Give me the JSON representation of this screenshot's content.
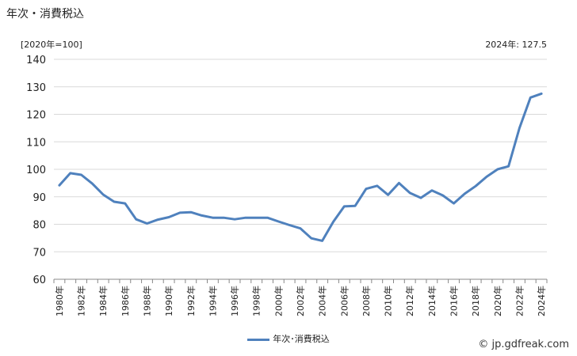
{
  "header": {
    "title": "年次・消費税込",
    "unit_label": "[2020年=100]",
    "latest_value_label": "2024年: 127.5"
  },
  "legend": {
    "label": "年次･消費税込"
  },
  "footer": {
    "source": "© jp.gdfreak.com"
  },
  "colors": {
    "line": "#4f81bd",
    "grid": "#d9d9d9",
    "axis": "#888888"
  },
  "chart_data": {
    "type": "line",
    "ylim": [
      60,
      140
    ],
    "yticks": [
      60,
      70,
      80,
      90,
      100,
      110,
      120,
      130,
      140
    ],
    "x": [
      1980,
      1981,
      1982,
      1983,
      1984,
      1985,
      1986,
      1987,
      1988,
      1989,
      1990,
      1991,
      1992,
      1993,
      1994,
      1995,
      1996,
      1997,
      1998,
      1999,
      2000,
      2001,
      2002,
      2003,
      2004,
      2005,
      2006,
      2007,
      2008,
      2009,
      2010,
      2011,
      2012,
      2013,
      2014,
      2015,
      2016,
      2017,
      2018,
      2019,
      2020,
      2021,
      2022,
      2023,
      2024
    ],
    "xtick_labels": [
      "1980年",
      "1982年",
      "1984年",
      "1986年",
      "1988年",
      "1990年",
      "1992年",
      "1994年",
      "1996年",
      "1998年",
      "2000年",
      "2002年",
      "2004年",
      "2006年",
      "2008年",
      "2010年",
      "2012年",
      "2014年",
      "2016年",
      "2018年",
      "2020年",
      "2022年",
      "2024年"
    ],
    "series": [
      {
        "name": "年次･消費税込",
        "values": [
          94.2,
          98.6,
          98.0,
          94.8,
          90.8,
          88.2,
          87.6,
          81.8,
          80.3,
          81.7,
          82.6,
          84.2,
          84.4,
          83.2,
          82.4,
          82.4,
          81.8,
          82.4,
          82.4,
          82.4,
          81.0,
          79.7,
          78.5,
          74.9,
          74.0,
          80.9,
          86.5,
          86.7,
          92.9,
          94.0,
          90.7,
          95.0,
          91.4,
          89.6,
          92.3,
          90.5,
          87.6,
          91.1,
          93.9,
          97.3,
          100.0,
          101.1,
          115.0,
          126.1,
          127.5
        ]
      }
    ]
  }
}
